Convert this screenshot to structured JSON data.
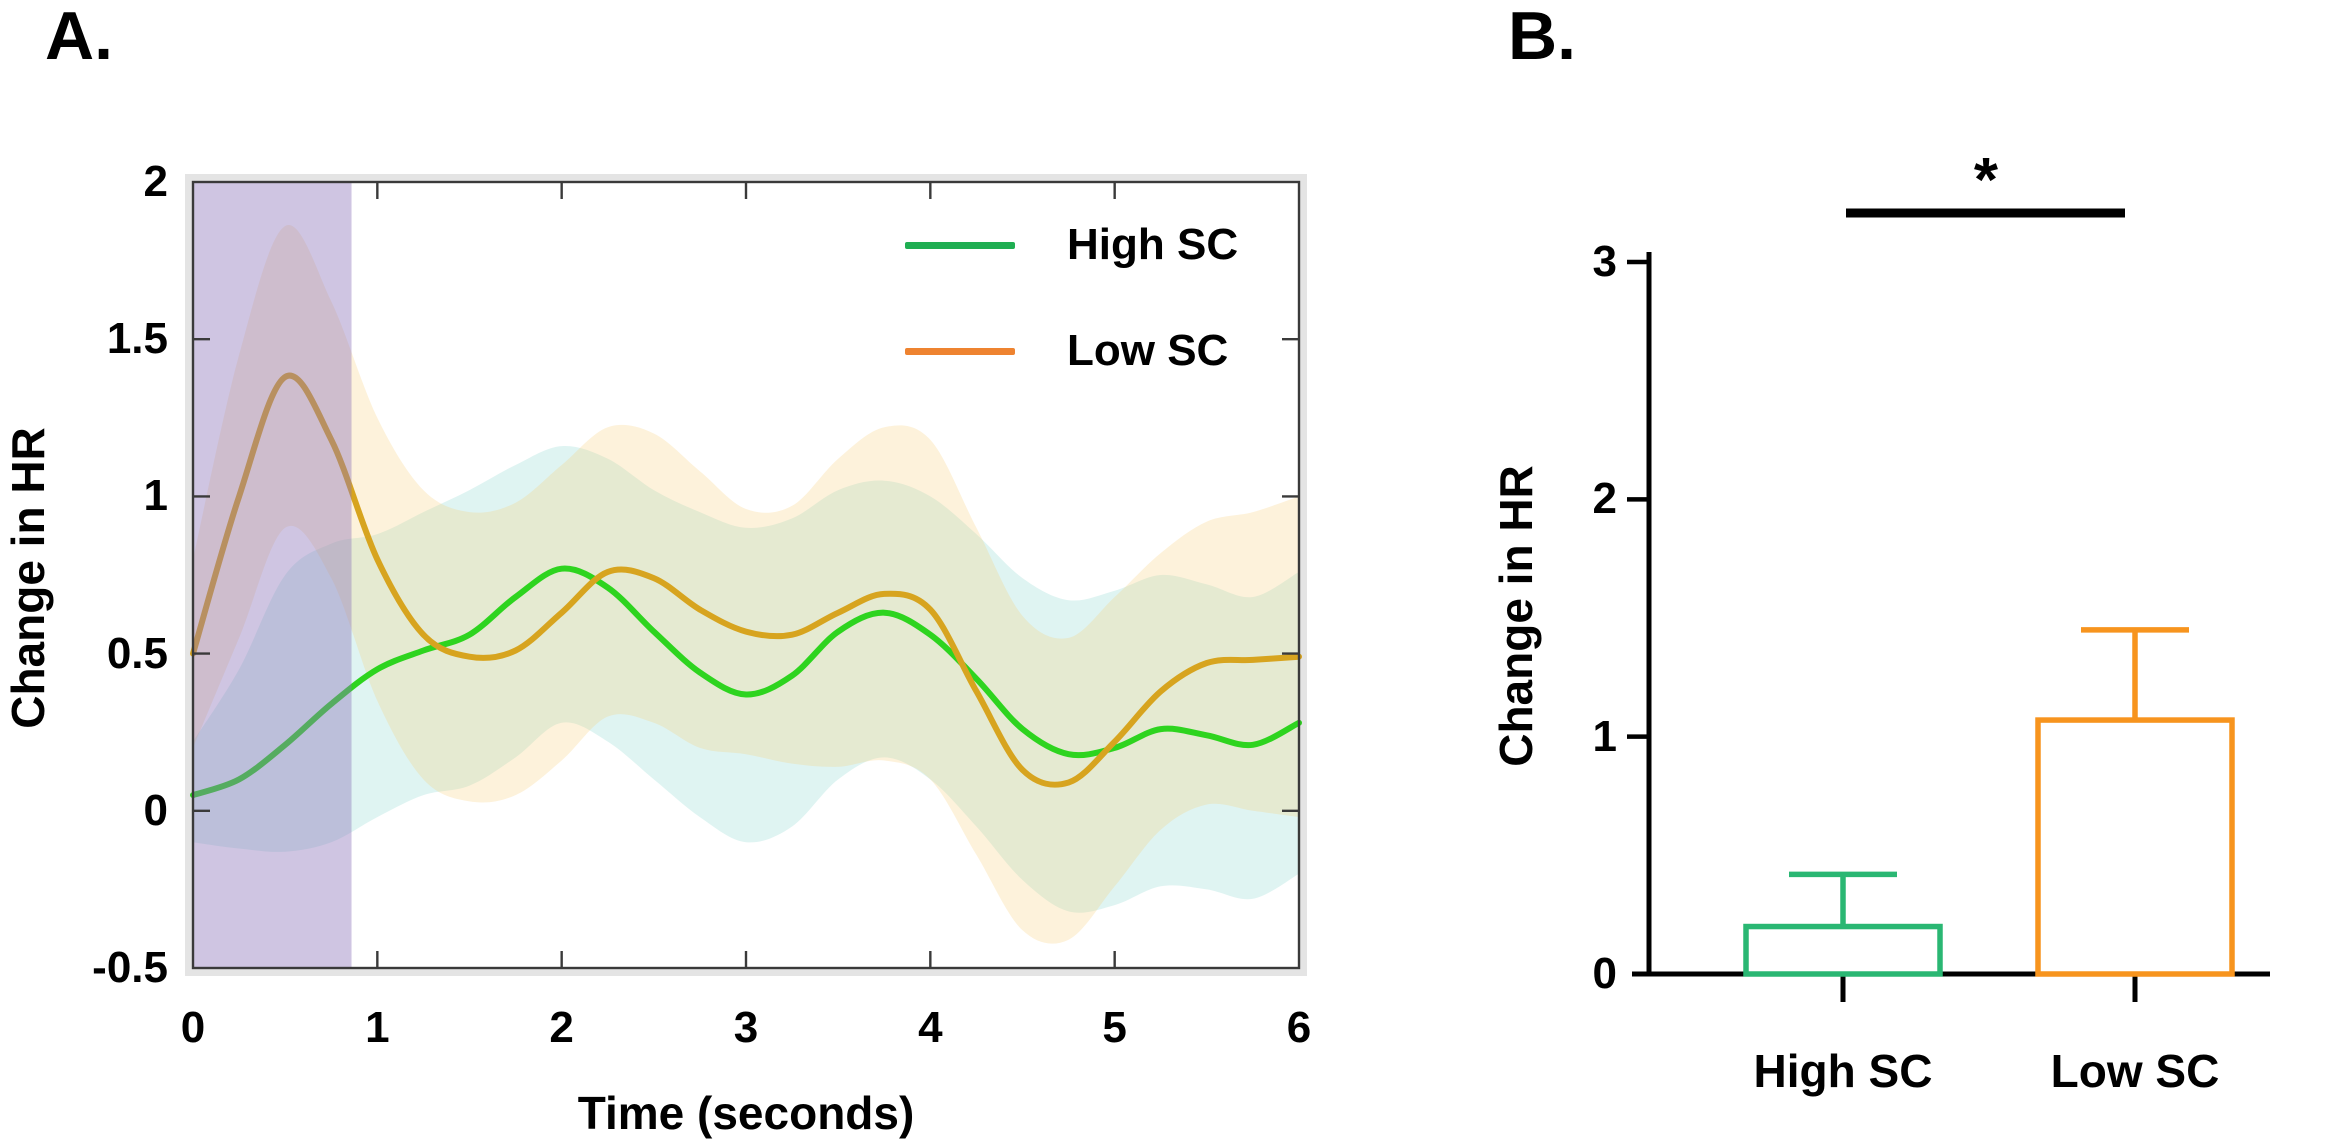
{
  "figure": {
    "background": "#ffffff",
    "frame_color": "#3a3a3a",
    "outer_frame_color": "#e4e4e4"
  },
  "panel_a": {
    "label": "A.",
    "ylabel": "Change in HR",
    "xlabel": "Time (seconds)",
    "legend": [
      {
        "label": "High SC",
        "color": "#1fae52"
      },
      {
        "label": "Low SC",
        "color": "#ee8330"
      }
    ]
  },
  "panel_b": {
    "label": "B.",
    "ylabel": "Change in HR",
    "significance_label": "*"
  },
  "chart_data": [
    {
      "type": "line",
      "panel": "A",
      "xlabel": "Time (seconds)",
      "ylabel": "Change in HR",
      "xlim": [
        0,
        6
      ],
      "ylim": [
        -0.5,
        2
      ],
      "x_ticks": [
        0,
        1,
        2,
        3,
        4,
        5,
        6
      ],
      "x_tick_labels": [
        "0",
        "1",
        "2",
        "3",
        "4",
        "5",
        "6"
      ],
      "y_ticks": [
        2,
        1.5,
        1,
        0.5,
        0,
        -0.5
      ],
      "y_tick_labels": [
        "2",
        "1.5",
        "1",
        "0.5",
        "0",
        "-0.5"
      ],
      "grid": false,
      "legend_position": "upper right inside",
      "shaded_region": {
        "name": "stimulus-window",
        "x_start": 0,
        "x_end": 0.86,
        "color": "rgba(141,116,187,0.42)"
      },
      "x": [
        0,
        0.25,
        0.5,
        0.75,
        1,
        1.25,
        1.5,
        1.75,
        2,
        2.25,
        2.5,
        2.75,
        3,
        3.25,
        3.5,
        3.75,
        4,
        4.25,
        4.5,
        4.75,
        5,
        5.25,
        5.5,
        5.75,
        6
      ],
      "series": [
        {
          "name": "High SC",
          "line_color": "#2ed41f",
          "band_color": "rgba(111,205,196,0.22)",
          "y": [
            0.05,
            0.1,
            0.21,
            0.34,
            0.45,
            0.51,
            0.56,
            0.68,
            0.77,
            0.71,
            0.57,
            0.44,
            0.37,
            0.43,
            0.57,
            0.63,
            0.56,
            0.42,
            0.26,
            0.18,
            0.2,
            0.26,
            0.24,
            0.21,
            0.28
          ],
          "band_hi": [
            0.22,
            0.45,
            0.75,
            0.85,
            0.88,
            0.95,
            1.02,
            1.1,
            1.16,
            1.12,
            1.02,
            0.95,
            0.9,
            0.93,
            1.02,
            1.05,
            1.0,
            0.88,
            0.74,
            0.67,
            0.7,
            0.75,
            0.72,
            0.68,
            0.76
          ],
          "band_lo": [
            -0.1,
            -0.12,
            -0.13,
            -0.1,
            -0.02,
            0.05,
            0.08,
            0.17,
            0.28,
            0.22,
            0.1,
            -0.02,
            -0.1,
            -0.05,
            0.1,
            0.17,
            0.1,
            -0.05,
            -0.22,
            -0.32,
            -0.3,
            -0.24,
            -0.25,
            -0.28,
            -0.2
          ]
        },
        {
          "name": "Low SC",
          "line_color": "#d7a41f",
          "band_color": "rgba(246,204,116,0.26)",
          "y": [
            0.5,
            1.0,
            1.38,
            1.18,
            0.8,
            0.56,
            0.49,
            0.51,
            0.63,
            0.76,
            0.74,
            0.64,
            0.57,
            0.56,
            0.63,
            0.69,
            0.64,
            0.38,
            0.13,
            0.09,
            0.22,
            0.38,
            0.47,
            0.48,
            0.49
          ],
          "band_hi": [
            0.8,
            1.45,
            1.86,
            1.62,
            1.25,
            1.02,
            0.95,
            0.98,
            1.1,
            1.22,
            1.2,
            1.08,
            0.96,
            0.97,
            1.12,
            1.22,
            1.18,
            0.9,
            0.62,
            0.55,
            0.68,
            0.82,
            0.92,
            0.95,
            1.0
          ],
          "band_lo": [
            0.2,
            0.55,
            0.9,
            0.74,
            0.35,
            0.1,
            0.03,
            0.05,
            0.16,
            0.3,
            0.28,
            0.2,
            0.18,
            0.15,
            0.14,
            0.16,
            0.1,
            -0.14,
            -0.38,
            -0.41,
            -0.24,
            -0.06,
            0.02,
            0.0,
            -0.02
          ]
        }
      ]
    },
    {
      "type": "bar",
      "panel": "B",
      "ylabel": "Change in HR",
      "ylim": [
        0,
        3
      ],
      "y_ticks": [
        0,
        1,
        2,
        3
      ],
      "y_tick_labels": [
        "0",
        "1",
        "2",
        "3"
      ],
      "categories": [
        "High SC",
        "Low SC"
      ],
      "values": [
        0.2,
        1.07
      ],
      "error_top": [
        0.42,
        1.45
      ],
      "bar_colors": [
        "#2ab773",
        "#f7941e"
      ],
      "bar_fill": "#ffffff",
      "axis_color": "#000000",
      "significance": {
        "label": "*",
        "from": "High SC",
        "to": "Low SC",
        "line_y": 3.18
      }
    }
  ]
}
